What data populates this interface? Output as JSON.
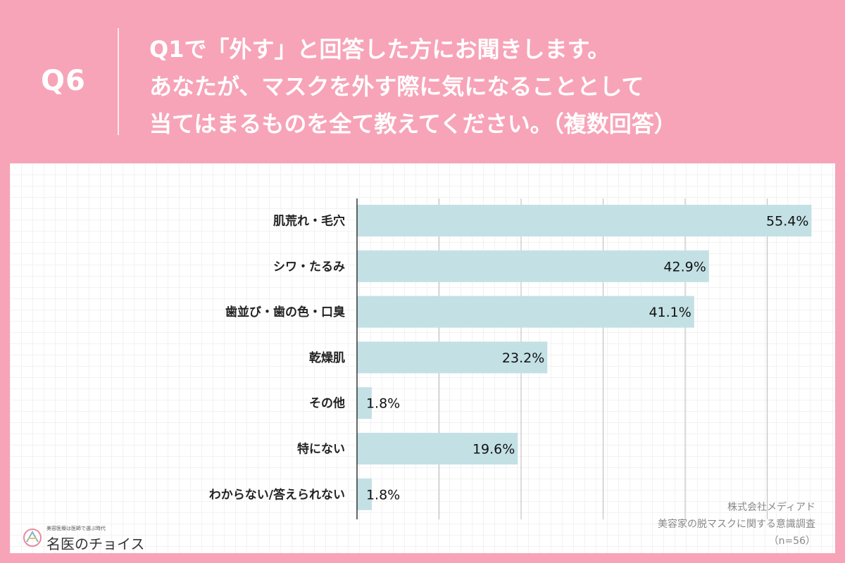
{
  "header": {
    "qnum": "Q6",
    "question_lines": [
      "Q1で「外す」と回答した方にお聞きします。",
      "あなたが、マスクを外す際に気になることとして",
      "当てはまるものを全て教えてください。（複数回答）"
    ]
  },
  "chart_data": {
    "type": "bar",
    "orientation": "horizontal",
    "categories": [
      "肌荒れ・毛穴",
      "シワ・たるみ",
      "歯並び・歯の色・口臭",
      "乾燥肌",
      "その他",
      "特にない",
      "わからない/答えられない"
    ],
    "values": [
      55.4,
      42.9,
      41.1,
      23.2,
      1.8,
      19.6,
      1.8
    ],
    "value_labels": [
      "55.4%",
      "42.9%",
      "41.1%",
      "23.2%",
      "1.8%",
      "19.6%",
      "1.8%"
    ],
    "xlim": [
      0,
      60
    ],
    "grid": true,
    "bar_color": "#c3e0e5"
  },
  "source": {
    "company": "株式会社メディアド",
    "survey": "美容家の脱マスクに関する意識調査",
    "n": "（n=56）"
  },
  "logo": {
    "tagline": "美容医療は医師で選ぶ時代",
    "name": "名医のチョイス"
  },
  "colors": {
    "background": "#f7a4b8",
    "panel": "#ffffff",
    "bar": "#c3e0e5"
  }
}
